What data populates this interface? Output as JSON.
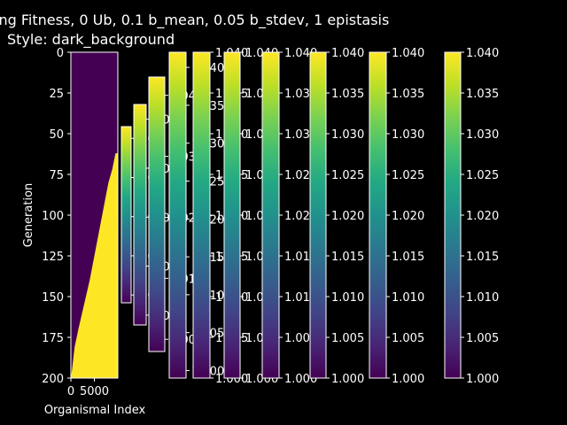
{
  "chart_data": {
    "type": "heatmap",
    "title_line1": "ing Fitness, 0 Ub, 0.1 b_mean, 0.05 b_stdev, 1 epistasis",
    "title_line2": "Style: dark_background",
    "main": {
      "ylabel": "Generation",
      "xlabel": "Organismal Index",
      "yticks": [
        "0",
        "25",
        "50",
        "75",
        "100",
        "125",
        "150",
        "175",
        "200"
      ],
      "ytick_values": [
        0,
        25,
        50,
        75,
        100,
        125,
        150,
        175,
        200
      ],
      "xticks": [
        "0",
        "5000"
      ],
      "xtick_values": [
        0,
        5000
      ],
      "xlim": [
        0,
        10000
      ],
      "ylim": [
        0,
        200
      ],
      "boundary": [
        [
          0,
          200
        ],
        [
          200,
          196
        ],
        [
          800,
          181
        ],
        [
          1600,
          170
        ],
        [
          2400,
          160
        ],
        [
          3200,
          150
        ],
        [
          4000,
          140
        ],
        [
          4800,
          128
        ],
        [
          5600,
          116
        ],
        [
          6400,
          104
        ],
        [
          7200,
          92
        ],
        [
          8000,
          80
        ],
        [
          8800,
          72
        ],
        [
          9500,
          62
        ],
        [
          10000,
          62
        ]
      ],
      "low_color": "#440154",
      "high_color": "#fde725"
    },
    "colorbars": [
      {
        "ticks": [
          "1.00",
          "1.01",
          "1.02",
          "1.03",
          "1.04"
        ],
        "values": [
          1.0,
          1.01,
          1.02,
          1.03,
          1.04
        ],
        "min": 0.998,
        "max": 1.043
      },
      {
        "ticks": [
          "1.00",
          "1.01",
          "1.02",
          "1.03",
          "1.04"
        ],
        "values": [
          1.0,
          1.01,
          1.02,
          1.03,
          1.04
        ],
        "min": 0.998,
        "max": 1.043
      },
      {
        "ticks": [
          "1.00",
          "1.01",
          "1.02",
          "1.03",
          "1.04"
        ],
        "values": [
          1.0,
          1.01,
          1.02,
          1.03,
          1.04
        ],
        "min": 0.998,
        "max": 1.043
      },
      {
        "ticks": [
          "1.000",
          "1.005",
          "1.010",
          "1.015",
          "1.020",
          "1.025",
          "1.030",
          "1.035",
          "1.040"
        ],
        "values": [
          1.0,
          1.005,
          1.01,
          1.015,
          1.02,
          1.025,
          1.03,
          1.035,
          1.04
        ],
        "min": 0.999,
        "max": 1.042
      },
      {
        "ticks": [
          "1.000",
          "1.005",
          "1.010",
          "1.015",
          "1.020",
          "1.025",
          "1.030",
          "1.035",
          "1.040"
        ],
        "values": [
          1.0,
          1.005,
          1.01,
          1.015,
          1.02,
          1.025,
          1.03,
          1.035,
          1.04
        ],
        "min": 1.0,
        "max": 1.04
      },
      {
        "ticks": [
          "1.000",
          "1.005",
          "1.010",
          "1.015",
          "1.020",
          "1.025",
          "1.030",
          "1.035",
          "1.040"
        ],
        "values": [
          1.0,
          1.005,
          1.01,
          1.015,
          1.02,
          1.025,
          1.03,
          1.035,
          1.04
        ],
        "min": 1.0,
        "max": 1.04
      },
      {
        "ticks": [
          "1.000",
          "1.005",
          "1.010",
          "1.015",
          "1.020",
          "1.025",
          "1.030",
          "1.035",
          "1.040"
        ],
        "values": [
          1.0,
          1.005,
          1.01,
          1.015,
          1.02,
          1.025,
          1.03,
          1.035,
          1.04
        ],
        "min": 1.0,
        "max": 1.04
      },
      {
        "ticks": [
          "1.000",
          "1.005",
          "1.010",
          "1.015",
          "1.020",
          "1.025",
          "1.030",
          "1.035",
          "1.040"
        ],
        "values": [
          1.0,
          1.005,
          1.01,
          1.015,
          1.02,
          1.025,
          1.03,
          1.035,
          1.04
        ],
        "min": 1.0,
        "max": 1.04
      },
      {
        "ticks": [
          "1.000",
          "1.005",
          "1.010",
          "1.015",
          "1.020",
          "1.025",
          "1.030",
          "1.035",
          "1.040"
        ],
        "values": [
          1.0,
          1.005,
          1.01,
          1.015,
          1.02,
          1.025,
          1.03,
          1.035,
          1.04
        ],
        "min": 1.0,
        "max": 1.04
      },
      {
        "ticks": [
          "1.000",
          "1.005",
          "1.010",
          "1.015",
          "1.020",
          "1.025",
          "1.030",
          "1.035",
          "1.040"
        ],
        "values": [
          1.0,
          1.005,
          1.01,
          1.015,
          1.02,
          1.025,
          1.03,
          1.035,
          1.04
        ],
        "min": 1.0,
        "max": 1.04
      }
    ],
    "colormap": "viridis",
    "background": "#000000",
    "foreground": "#ffffff"
  }
}
